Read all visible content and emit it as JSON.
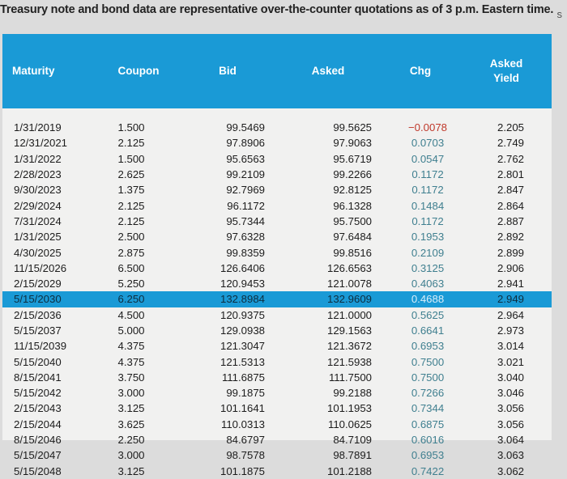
{
  "caption": "Treasury note and bond data are representative over-the-counter quotations as of 3 p.m. Eastern time.",
  "edge_mark": "s",
  "columns": {
    "maturity": "Maturity",
    "coupon": "Coupon",
    "bid": "Bid",
    "asked": "Asked",
    "chg": "Chg",
    "asked_yield_line1": "Asked",
    "asked_yield_line2": "Yield"
  },
  "highlight_color": "#1a9ad6",
  "negative_color": "#c0392b",
  "rows": [
    {
      "maturity": "1/31/2019",
      "coupon": "1.500",
      "bid": "99.5469",
      "asked": "99.5625",
      "chg": "−0.0078",
      "yield": "2.205"
    },
    {
      "maturity": "12/31/2021",
      "coupon": "2.125",
      "bid": "97.8906",
      "asked": "97.9063",
      "chg": "0.0703",
      "yield": "2.749"
    },
    {
      "maturity": "1/31/2022",
      "coupon": "1.500",
      "bid": "95.6563",
      "asked": "95.6719",
      "chg": "0.0547",
      "yield": "2.762"
    },
    {
      "maturity": "2/28/2023",
      "coupon": "2.625",
      "bid": "99.2109",
      "asked": "99.2266",
      "chg": "0.1172",
      "yield": "2.801"
    },
    {
      "maturity": "9/30/2023",
      "coupon": "1.375",
      "bid": "92.7969",
      "asked": "92.8125",
      "chg": "0.1172",
      "yield": "2.847"
    },
    {
      "maturity": "2/29/2024",
      "coupon": "2.125",
      "bid": "96.1172",
      "asked": "96.1328",
      "chg": "0.1484",
      "yield": "2.864"
    },
    {
      "maturity": "7/31/2024",
      "coupon": "2.125",
      "bid": "95.7344",
      "asked": "95.7500",
      "chg": "0.1172",
      "yield": "2.887"
    },
    {
      "maturity": "1/31/2025",
      "coupon": "2.500",
      "bid": "97.6328",
      "asked": "97.6484",
      "chg": "0.1953",
      "yield": "2.892"
    },
    {
      "maturity": "4/30/2025",
      "coupon": "2.875",
      "bid": "99.8359",
      "asked": "99.8516",
      "chg": "0.2109",
      "yield": "2.899"
    },
    {
      "maturity": "11/15/2026",
      "coupon": "6.500",
      "bid": "126.6406",
      "asked": "126.6563",
      "chg": "0.3125",
      "yield": "2.906"
    },
    {
      "maturity": "2/15/2029",
      "coupon": "5.250",
      "bid": "120.9453",
      "asked": "121.0078",
      "chg": "0.4063",
      "yield": "2.941"
    },
    {
      "maturity": "5/15/2030",
      "coupon": "6.250",
      "bid": "132.8984",
      "asked": "132.9609",
      "chg": "0.4688",
      "yield": "2.949"
    },
    {
      "maturity": "2/15/2036",
      "coupon": "4.500",
      "bid": "120.9375",
      "asked": "121.0000",
      "chg": "0.5625",
      "yield": "2.964"
    },
    {
      "maturity": "5/15/2037",
      "coupon": "5.000",
      "bid": "129.0938",
      "asked": "129.1563",
      "chg": "0.6641",
      "yield": "2.973"
    },
    {
      "maturity": "11/15/2039",
      "coupon": "4.375",
      "bid": "121.3047",
      "asked": "121.3672",
      "chg": "0.6953",
      "yield": "3.014"
    },
    {
      "maturity": "5/15/2040",
      "coupon": "4.375",
      "bid": "121.5313",
      "asked": "121.5938",
      "chg": "0.7500",
      "yield": "3.021"
    },
    {
      "maturity": "8/15/2041",
      "coupon": "3.750",
      "bid": "111.6875",
      "asked": "111.7500",
      "chg": "0.7500",
      "yield": "3.040"
    },
    {
      "maturity": "5/15/2042",
      "coupon": "3.000",
      "bid": "99.1875",
      "asked": "99.2188",
      "chg": "0.7266",
      "yield": "3.046"
    },
    {
      "maturity": "2/15/2043",
      "coupon": "3.125",
      "bid": "101.1641",
      "asked": "101.1953",
      "chg": "0.7344",
      "yield": "3.056"
    },
    {
      "maturity": "2/15/2044",
      "coupon": "3.625",
      "bid": "110.0313",
      "asked": "110.0625",
      "chg": "0.6875",
      "yield": "3.056"
    },
    {
      "maturity": "8/15/2046",
      "coupon": "2.250",
      "bid": "84.6797",
      "asked": "84.7109",
      "chg": "0.6016",
      "yield": "3.064"
    },
    {
      "maturity": "5/15/2047",
      "coupon": "3.000",
      "bid": "98.7578",
      "asked": "98.7891",
      "chg": "0.6953",
      "yield": "3.063"
    },
    {
      "maturity": "5/15/2048",
      "coupon": "3.125",
      "bid": "101.1875",
      "asked": "101.2188",
      "chg": "0.7422",
      "yield": "3.062"
    }
  ],
  "highlighted_maturity": "5/15/2030"
}
